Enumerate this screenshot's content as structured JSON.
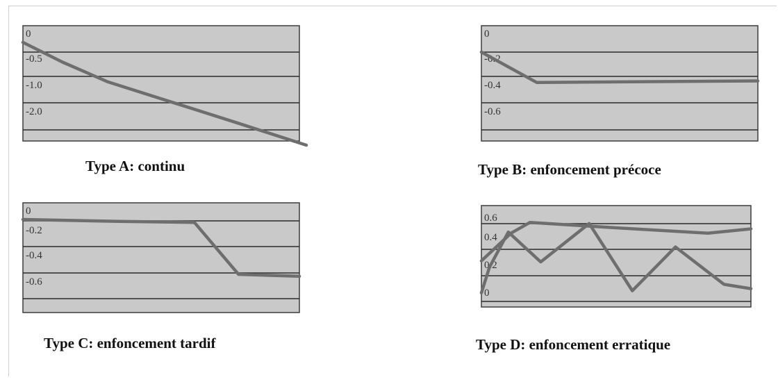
{
  "chart_data": [
    {
      "type": "line",
      "title": "Type A: continu",
      "yticks": [
        "0",
        "-0.5",
        "-1.0",
        "-2.0"
      ],
      "x": [
        0,
        0.14,
        0.3,
        0.74,
        1.0
      ],
      "series": [
        {
          "values": [
            0.0,
            -0.5,
            -1.0,
            -2.0,
            -2.6
          ]
        }
      ],
      "ylim": [
        -2.6,
        0.0
      ],
      "grid": true
    },
    {
      "type": "line",
      "title": "Type B: enfoncement précoce",
      "yticks": [
        "0",
        "-0.2",
        "-0.4",
        "-0.6"
      ],
      "x": [
        0,
        0.2,
        1.0
      ],
      "series": [
        {
          "values": [
            0.0,
            -0.4,
            -0.38
          ]
        }
      ],
      "ylim": [
        -0.75,
        0.0
      ],
      "grid": true
    },
    {
      "type": "line",
      "title": "Type C: enfoncement tardif",
      "yticks": [
        "0",
        "-0.2",
        "-0.4",
        "-0.6"
      ],
      "x": [
        0,
        0.35,
        0.62,
        0.78,
        1.0
      ],
      "series": [
        {
          "values": [
            0.0,
            -0.02,
            -0.03,
            -0.57,
            -0.59
          ]
        }
      ],
      "ylim": [
        -0.75,
        0.0
      ],
      "grid": true
    },
    {
      "type": "line",
      "title": "Type D: enfoncement erratique",
      "yticks": [
        "0.6",
        "0.4",
        "0.2",
        "0"
      ],
      "series": [
        {
          "x": [
            0,
            0.11,
            0.18,
            0.5,
            0.84,
            1.0
          ],
          "values": [
            0.28,
            0.54,
            0.64,
            0.59,
            0.54,
            0.58
          ]
        },
        {
          "x": [
            0,
            0.03,
            0.1,
            0.22,
            0.4,
            0.56,
            0.72,
            0.9,
            1.0
          ],
          "values": [
            -0.02,
            0.22,
            0.55,
            0.27,
            0.63,
            0.0,
            0.41,
            0.06,
            0.02
          ]
        }
      ],
      "ylim": [
        -0.1,
        0.72
      ],
      "grid": true
    }
  ]
}
